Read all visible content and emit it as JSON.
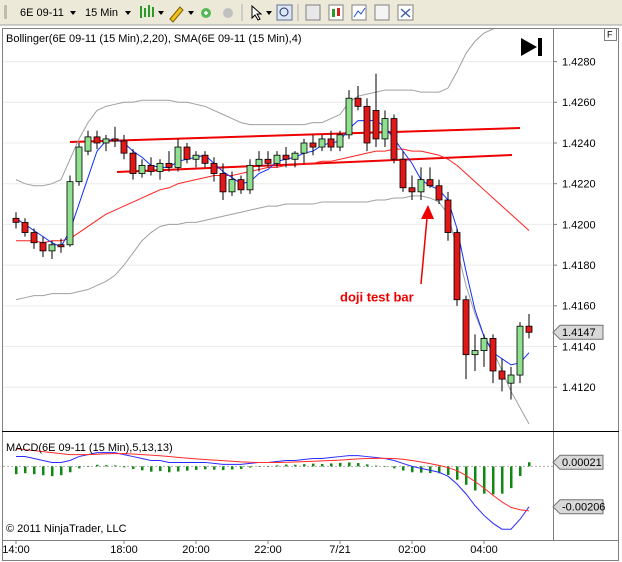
{
  "toolbar": {
    "instrument": "6E 09-11",
    "interval": "15 Min"
  },
  "copyright": "© 2011 NinjaTrader, LLC",
  "chart_data": [
    {
      "type": "candlestick",
      "title": "Bollinger(6E 09-11 (15 Min),2,20), SMA(6E 09-11 (15 Min),4)",
      "annotation": "doji test bar",
      "categories": [
        "14:00",
        null,
        null,
        null,
        null,
        null,
        null,
        null,
        null,
        null,
        null,
        null,
        "18:00",
        null,
        null,
        null,
        null,
        null,
        null,
        null,
        "20:00",
        null,
        null,
        null,
        null,
        null,
        null,
        null,
        "22:00",
        null,
        null,
        null,
        null,
        null,
        null,
        null,
        "7/21",
        null,
        null,
        null,
        null,
        null,
        null,
        null,
        "02:00",
        null,
        null,
        null,
        null,
        null,
        null,
        null,
        "04:00",
        null,
        null,
        null,
        null,
        null
      ],
      "open": [
        1.4203,
        1.4201,
        1.4196,
        1.4191,
        1.4187,
        1.419,
        1.419,
        1.4221,
        1.4236,
        1.4243,
        1.424,
        1.4242,
        1.4241,
        1.4235,
        1.4225,
        1.4229,
        1.4226,
        1.423,
        1.4228,
        1.4238,
        1.4232,
        1.4234,
        1.423,
        1.4225,
        1.4216,
        1.4222,
        1.4217,
        1.4229,
        1.4232,
        1.423,
        1.4234,
        1.4232,
        1.4235,
        1.424,
        1.4238,
        1.4242,
        1.4238,
        1.4244,
        1.4262,
        1.4258,
        1.4256,
        1.4242,
        1.4252,
        1.4232,
        1.4218,
        1.4216,
        1.4222,
        1.4219,
        1.4212,
        1.4196,
        1.4163,
        1.4136,
        1.4138,
        1.4144,
        1.4128,
        1.4122,
        1.4126,
        1.415
      ],
      "high": [
        1.4206,
        1.4203,
        1.4198,
        1.4194,
        1.4192,
        1.4193,
        1.4224,
        1.424,
        1.4246,
        1.4246,
        1.4244,
        1.4248,
        1.4244,
        1.4237,
        1.4232,
        1.4233,
        1.4232,
        1.4236,
        1.4242,
        1.424,
        1.4236,
        1.4236,
        1.4233,
        1.423,
        1.4226,
        1.4224,
        1.4232,
        1.4236,
        1.4236,
        1.4236,
        1.4238,
        1.4236,
        1.4242,
        1.4244,
        1.4244,
        1.4246,
        1.4246,
        1.4266,
        1.4268,
        1.4262,
        1.4274,
        1.4256,
        1.4254,
        1.4236,
        1.4224,
        1.4228,
        1.4228,
        1.4222,
        1.4216,
        1.4198,
        1.4165,
        1.4146,
        1.4146,
        1.4146,
        1.4134,
        1.413,
        1.4152,
        1.4156
      ],
      "low": [
        1.4198,
        1.4194,
        1.4188,
        1.4184,
        1.4183,
        1.4186,
        1.4189,
        1.4219,
        1.4234,
        1.4237,
        1.4236,
        1.4238,
        1.4232,
        1.4222,
        1.4223,
        1.4224,
        1.4222,
        1.4226,
        1.4226,
        1.423,
        1.4228,
        1.4228,
        1.4221,
        1.4212,
        1.4214,
        1.4215,
        1.4215,
        1.4226,
        1.4228,
        1.4228,
        1.4228,
        1.4228,
        1.423,
        1.4234,
        1.4236,
        1.4236,
        1.4236,
        1.4242,
        1.4256,
        1.4236,
        1.4238,
        1.4238,
        1.423,
        1.4216,
        1.4212,
        1.4212,
        1.4218,
        1.421,
        1.4192,
        1.416,
        1.4124,
        1.4128,
        1.413,
        1.4122,
        1.4118,
        1.4114,
        1.4122,
        1.4144
      ],
      "close": [
        1.4201,
        1.4196,
        1.4191,
        1.4187,
        1.419,
        1.4189,
        1.4221,
        1.4238,
        1.4243,
        1.424,
        1.4242,
        1.4241,
        1.4235,
        1.4225,
        1.4229,
        1.4226,
        1.423,
        1.4228,
        1.4238,
        1.4232,
        1.4234,
        1.423,
        1.4225,
        1.4216,
        1.4222,
        1.4217,
        1.4229,
        1.4232,
        1.423,
        1.4234,
        1.4232,
        1.4235,
        1.424,
        1.4238,
        1.4242,
        1.4238,
        1.4244,
        1.4262,
        1.4258,
        1.424,
        1.4242,
        1.4252,
        1.4232,
        1.4218,
        1.4216,
        1.4222,
        1.4219,
        1.4212,
        1.4196,
        1.4163,
        1.4136,
        1.4138,
        1.4144,
        1.4128,
        1.4124,
        1.4126,
        1.415,
        1.4147
      ],
      "up_color": "#8fe08f",
      "down_color": "#e01818",
      "series": [
        {
          "color": "#a0a0a0",
          "values": [
            1.4222,
            1.422,
            1.4219,
            1.4219,
            1.422,
            1.4222,
            1.4232,
            1.4242,
            1.425,
            1.4256,
            1.4258,
            1.4259,
            1.426,
            1.426,
            1.4261,
            1.4261,
            1.4261,
            1.4261,
            1.426,
            1.426,
            1.4259,
            1.4258,
            1.4256,
            1.4254,
            1.4252,
            1.425,
            1.4249,
            1.4249,
            1.4249,
            1.4249,
            1.4249,
            1.4249,
            1.4249,
            1.425,
            1.425,
            1.4252,
            1.4254,
            1.426,
            1.4263,
            1.4264,
            1.4265,
            1.4266,
            1.4266,
            1.4266,
            1.4266,
            1.4265,
            1.4265,
            1.4265,
            1.4267,
            1.4275,
            1.4284,
            1.429,
            1.4294,
            1.4296,
            1.4298,
            1.4299,
            1.4299,
            1.4298
          ]
        },
        {
          "color": "#ff2020",
          "values": [
            1.4192,
            1.4192,
            1.4192,
            1.4191,
            1.4192,
            1.4192,
            1.4193,
            1.4196,
            1.4199,
            1.4202,
            1.4205,
            1.4207,
            1.4209,
            1.4211,
            1.4213,
            1.4215,
            1.4217,
            1.4218,
            1.422,
            1.4221,
            1.4222,
            1.4223,
            1.4224,
            1.4224,
            1.4224,
            1.4225,
            1.4226,
            1.4227,
            1.4228,
            1.4228,
            1.4229,
            1.4229,
            1.423,
            1.423,
            1.4231,
            1.4231,
            1.4232,
            1.4233,
            1.4234,
            1.4235,
            1.4236,
            1.4236,
            1.4237,
            1.4237,
            1.4236,
            1.4236,
            1.4235,
            1.4234,
            1.4232,
            1.4229,
            1.4225,
            1.4221,
            1.4217,
            1.4213,
            1.4209,
            1.4205,
            1.4201,
            1.4197
          ]
        },
        {
          "color": "#a0a0a0",
          "values": [
            1.4163,
            1.4164,
            1.4165,
            1.4165,
            1.4166,
            1.4166,
            1.4166,
            1.4167,
            1.4168,
            1.417,
            1.4172,
            1.4175,
            1.418,
            1.4186,
            1.4192,
            1.4196,
            1.4199,
            1.42,
            1.42,
            1.4201,
            1.4201,
            1.4202,
            1.4203,
            1.4204,
            1.4205,
            1.4206,
            1.4207,
            1.4208,
            1.4209,
            1.4209,
            1.421,
            1.421,
            1.421,
            1.421,
            1.4211,
            1.4211,
            1.4211,
            1.4211,
            1.4211,
            1.4211,
            1.4212,
            1.4212,
            1.4213,
            1.4213,
            1.4214,
            1.4214,
            1.4213,
            1.4211,
            1.4205,
            1.4188,
            1.417,
            1.4156,
            1.4145,
            1.4138,
            1.4128,
            1.4118,
            1.411,
            1.4102
          ]
        },
        {
          "color": "#1030ff",
          "values": [
            1.4203,
            1.42,
            1.4197,
            1.4194,
            1.4191,
            1.4189,
            1.4197,
            1.421,
            1.4223,
            1.4236,
            1.4241,
            1.4242,
            1.424,
            1.4236,
            1.4233,
            1.4229,
            1.4228,
            1.4228,
            1.4231,
            1.4232,
            1.4233,
            1.4234,
            1.423,
            1.4226,
            1.4223,
            1.422,
            1.4221,
            1.4225,
            1.4227,
            1.4231,
            1.4232,
            1.4233,
            1.4235,
            1.4236,
            1.4239,
            1.424,
            1.4241,
            1.4247,
            1.4251,
            1.4251,
            1.4251,
            1.4248,
            1.4242,
            1.4236,
            1.423,
            1.4222,
            1.4219,
            1.4217,
            1.4212,
            1.4198,
            1.4177,
            1.4158,
            1.4145,
            1.4137,
            1.4134,
            1.4131,
            1.4132,
            1.4137
          ]
        }
      ],
      "ylim": [
        1.4099,
        1.4296
      ],
      "yticks": [
        {
          "value": 1.428,
          "label": "1.4280"
        },
        {
          "value": 1.426,
          "label": "1.4260"
        },
        {
          "value": 1.424,
          "label": "1.4240"
        },
        {
          "value": 1.422,
          "label": "1.4220"
        },
        {
          "value": 1.42,
          "label": "1.4200"
        },
        {
          "value": 1.418,
          "label": "1.4180"
        },
        {
          "value": 1.416,
          "label": "1.4160"
        },
        {
          "value": 1.414,
          "label": "1.4140"
        },
        {
          "value": 1.412,
          "label": "1.4120"
        }
      ],
      "grid": true
    },
    {
      "type": "macd",
      "title": "MACD(6E 09-11 (15 Min),5,13,13)",
      "series": [
        {
          "color": "#2a2aff",
          "style": "line",
          "values": [
            0.0005,
            0.0005,
            0.0004,
            0.0003,
            0.0002,
            0.0002,
            0.0003,
            0.0005,
            0.0006,
            0.0007,
            0.0007,
            0.0007,
            0.0006,
            0.0005,
            0.0004,
            0.0003,
            0.0003,
            0.0002,
            0.0002,
            0.0002,
            0.0002,
            0.0002,
            0.00015,
            0.0001,
            0.0001,
            0.0001,
            0.00015,
            0.0002,
            0.0002,
            0.00025,
            0.0003,
            0.0003,
            0.00035,
            0.0004,
            0.0004,
            0.00045,
            0.0005,
            0.00055,
            0.00055,
            0.0005,
            0.00045,
            0.0004,
            0.0003,
            0.00015,
            0,
            -0.0001,
            -0.0002,
            -0.0003,
            -0.0005,
            -0.0009,
            -0.0014,
            -0.002,
            -0.0025,
            -0.0029,
            -0.0032,
            -0.0032,
            -0.0027,
            -0.00206
          ]
        },
        {
          "color": "#ff2a2a",
          "style": "line",
          "values": [
            0.0009,
            0.00085,
            0.0008,
            0.00075,
            0.0007,
            0.00065,
            0.0006,
            0.0006,
            0.0006,
            0.00062,
            0.00064,
            0.00065,
            0.00065,
            0.00063,
            0.0006,
            0.00057,
            0.00054,
            0.0005,
            0.00046,
            0.00042,
            0.00038,
            0.00035,
            0.00032,
            0.00029,
            0.00026,
            0.00023,
            0.00021,
            0.0002,
            0.0002,
            0.0002,
            0.00021,
            0.00022,
            0.00024,
            0.00026,
            0.00028,
            0.0003,
            0.00032,
            0.00035,
            0.00038,
            0.0004,
            0.00041,
            0.00041,
            0.0004,
            0.00036,
            0.0003,
            0.00022,
            0.00014,
            5e-05,
            -6e-05,
            -0.00022,
            -0.00046,
            -0.00077,
            -0.00111,
            -0.00147,
            -0.00181,
            -0.00209,
            -0.00221,
            -0.00227
          ]
        },
        {
          "color": "#118811",
          "style": "bar",
          "values": [
            -0.0004,
            -0.00035,
            -0.0004,
            -0.00045,
            -0.0005,
            -0.00045,
            -0.0003,
            -0.0001,
            0,
            8e-05,
            6e-05,
            5e-05,
            -5e-05,
            -0.00013,
            -0.0002,
            -0.00027,
            -0.00024,
            -0.0003,
            -0.00026,
            -0.00022,
            -0.00018,
            -0.00015,
            -0.00017,
            -0.00019,
            -0.00016,
            -0.00013,
            -6e-05,
            0,
            0,
            5e-05,
            9e-05,
            8e-05,
            0.00011,
            0.00014,
            0.00012,
            0.00015,
            0.00018,
            0.0002,
            0.00017,
            0.0001,
            4e-05,
            -1e-05,
            -0.0001,
            -0.00021,
            -0.0003,
            -0.00032,
            -0.00034,
            -0.00035,
            -0.00044,
            -0.00068,
            -0.00094,
            -0.00123,
            -0.00139,
            -0.00143,
            -0.00139,
            -0.00111,
            -0.00049,
            0.00021
          ]
        }
      ],
      "ylim": [
        -0.0037,
        0.0017
      ]
    }
  ]
}
